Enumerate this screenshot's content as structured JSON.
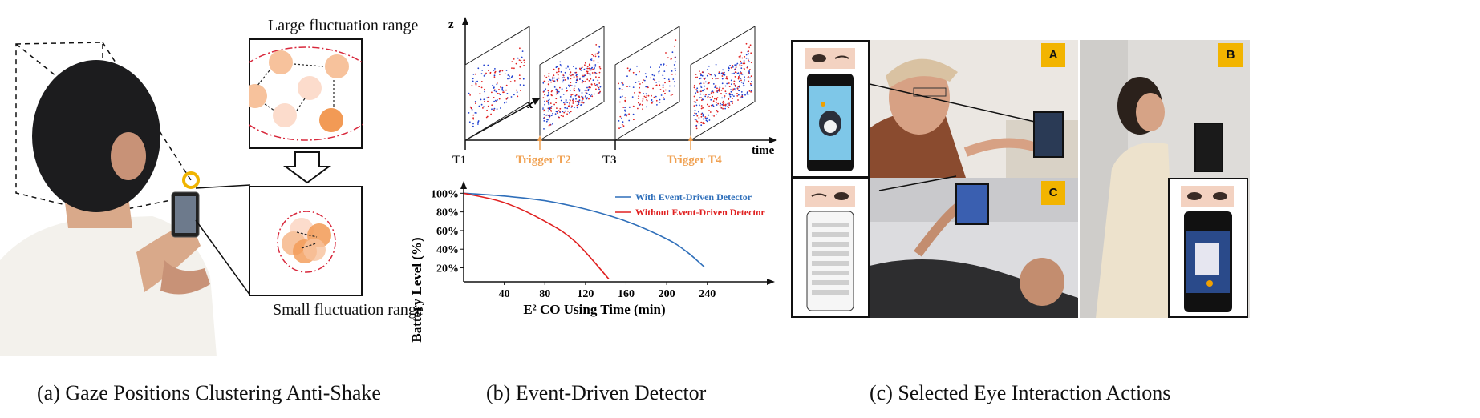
{
  "panel_a": {
    "caption": "(a) Gaze Positions Clustering Anti-Shake",
    "large_label": "Large fluctuation range",
    "small_label": "Small fluctuation range"
  },
  "panel_b": {
    "caption": "(b) Event-Driven Detector",
    "event_plot": {
      "z_label": "z",
      "x_label": "x",
      "time_label": "time",
      "ticks": [
        "T1",
        "Trigger T2",
        "T3",
        "Trigger T4"
      ],
      "trigger_color": "#f0a050"
    }
  },
  "panel_c": {
    "caption": "(c) Selected Eye Interaction Actions",
    "badges": [
      "A",
      "B",
      "C"
    ]
  },
  "chart_data": {
    "type": "line",
    "ylabel": "Battery Level (%)",
    "xlabel": "E² CO Using Time (min)",
    "x_ticks": [
      40,
      80,
      120,
      160,
      200,
      240
    ],
    "y_ticks": [
      "20%",
      "40%",
      "60%",
      "80%",
      "100%"
    ],
    "xlim": [
      0,
      290
    ],
    "ylim": [
      5,
      108
    ],
    "series": [
      {
        "name": "With Event-Driven Detector",
        "color": "#2f6fba",
        "x": [
          0,
          40,
          80,
          120,
          160,
          200,
          220,
          237
        ],
        "y": [
          100,
          97,
          92,
          83,
          70,
          51,
          37,
          21
        ]
      },
      {
        "name": "Without Event-Driven Detector",
        "color": "#e02020",
        "x": [
          0,
          40,
          80,
          110,
          143
        ],
        "y": [
          100,
          90,
          70,
          48,
          8
        ]
      }
    ]
  }
}
